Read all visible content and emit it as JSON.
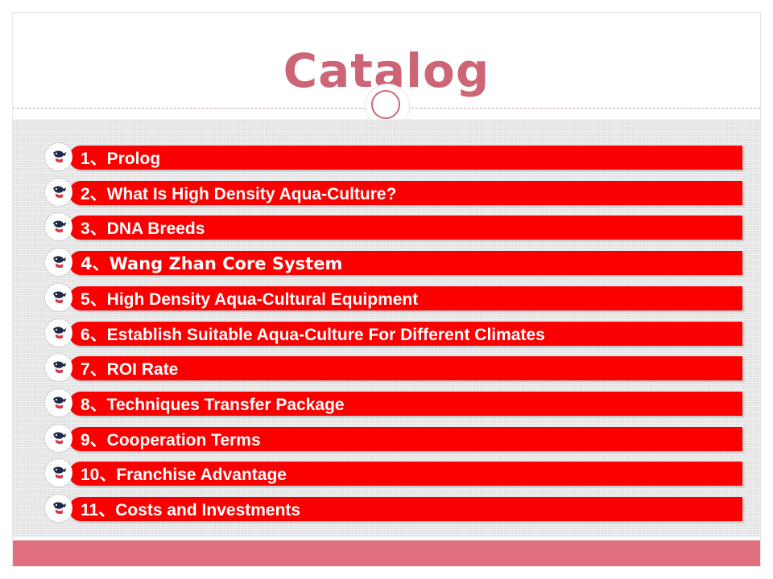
{
  "slide": {
    "title": "Catalog",
    "colors": {
      "title": "#cc6677",
      "bar": "#fb0000",
      "footer": "#e07080",
      "panel": "#e0e0e0"
    },
    "items": [
      {
        "label": "1、Prolog",
        "icon": "fish-icon"
      },
      {
        "label": "2、What Is High Density Aqua-Culture?",
        "icon": "fish-icon"
      },
      {
        "label": "3、DNA Breeds",
        "icon": "fish-icon"
      },
      {
        "label": "4、Wang Zhan Core System",
        "icon": "fish-icon"
      },
      {
        "label": "5、High Density Aqua-Cultural Equipment",
        "icon": "fish-icon"
      },
      {
        "label": "6、Establish Suitable Aqua-Culture For Different Climates",
        "icon": "fish-icon"
      },
      {
        "label": "7、ROI Rate",
        "icon": "fish-icon"
      },
      {
        "label": "8、Techniques Transfer Package",
        "icon": "fish-icon"
      },
      {
        "label": "9、Cooperation Terms",
        "icon": "fish-icon"
      },
      {
        "label": "10、Franchise Advantage",
        "icon": "fish-icon"
      },
      {
        "label": "11、Costs and Investments",
        "icon": "fish-icon"
      }
    ]
  }
}
